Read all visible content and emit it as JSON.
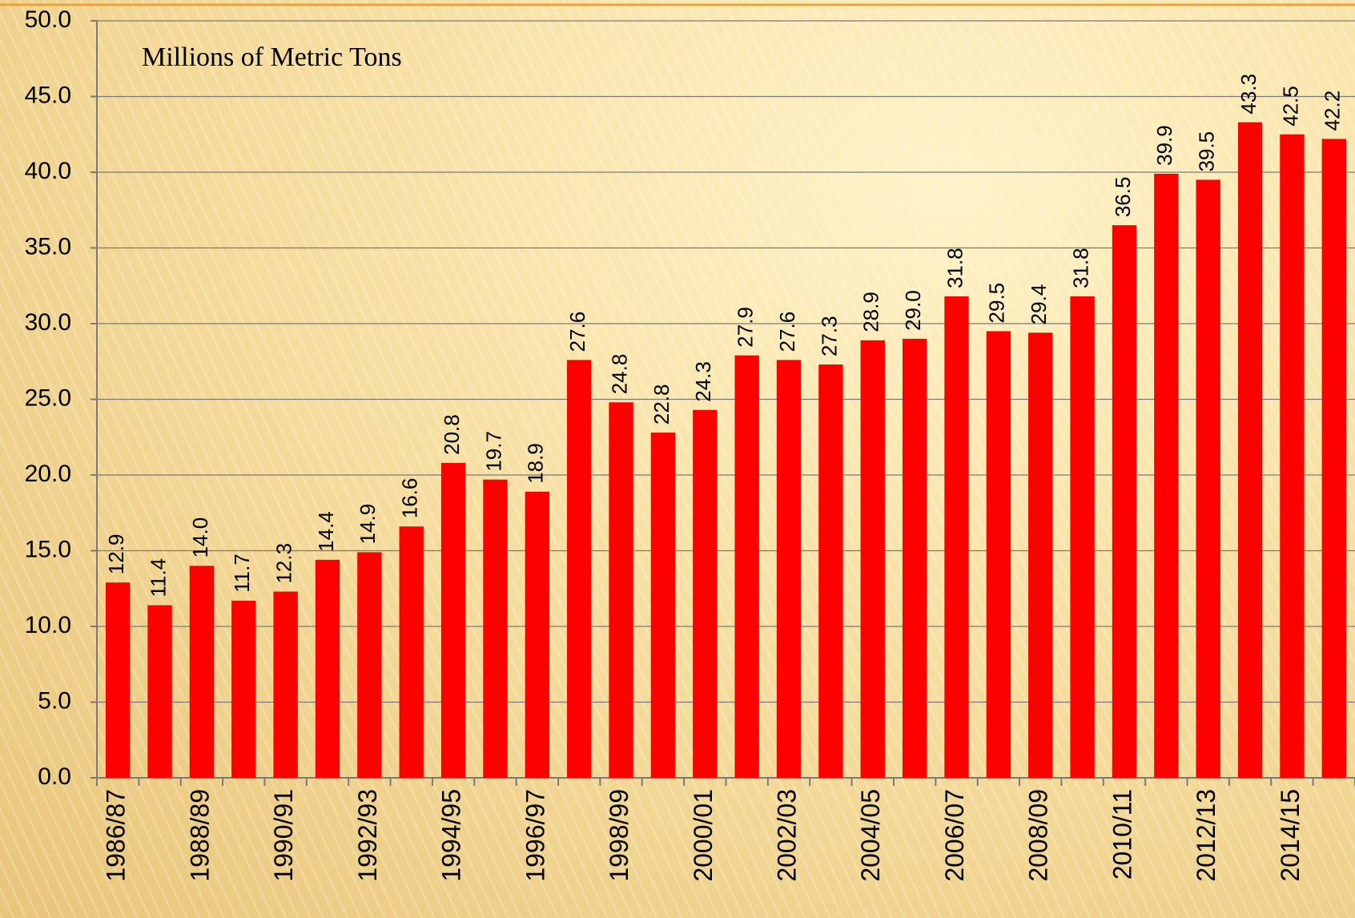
{
  "chart_data": {
    "type": "bar",
    "subtitle": "Millions of Metric Tons",
    "categories": [
      "1986/87",
      null,
      "1988/89",
      null,
      "1990/91",
      null,
      "1992/93",
      null,
      "1994/95",
      null,
      "1996/97",
      null,
      "1998/99",
      null,
      "2000/01",
      null,
      "2002/03",
      null,
      "2004/05",
      null,
      "2006/07",
      null,
      "2008/09",
      null,
      "2010/11",
      null,
      "2012/13",
      null,
      "2014/15",
      null
    ],
    "values": [
      12.9,
      11.4,
      14.0,
      11.7,
      12.3,
      14.4,
      14.9,
      16.6,
      20.8,
      19.7,
      18.9,
      27.6,
      24.8,
      22.8,
      24.3,
      27.9,
      27.6,
      27.3,
      28.9,
      29.0,
      31.8,
      29.5,
      29.4,
      31.8,
      36.5,
      39.9,
      39.5,
      43.3,
      42.5,
      42.2
    ],
    "value_labels": [
      "12.9",
      "11.4",
      "14.0",
      "11.7",
      "12.3",
      "14.4",
      "14.9",
      "16.6",
      "20.8",
      "19.7",
      "18.9",
      "27.6",
      "24.8",
      "22.8",
      "24.3",
      "27.9",
      "27.6",
      "27.3",
      "28.9",
      "29.0",
      "31.8",
      "29.5",
      "29.4",
      "31.8",
      "36.5",
      "39.9",
      "39.5",
      "43.3",
      "42.5",
      "42.2"
    ],
    "color": "#ff0000",
    "ylim": [
      0,
      50
    ],
    "yticks": [
      {
        "value": 0,
        "label": "0.0"
      },
      {
        "value": 5,
        "label": "5.0"
      },
      {
        "value": 10,
        "label": "10.0"
      },
      {
        "value": 15,
        "label": "15.0"
      },
      {
        "value": 20,
        "label": "20.0"
      },
      {
        "value": 25,
        "label": "25.0"
      },
      {
        "value": 30,
        "label": "30.0"
      },
      {
        "value": 35,
        "label": "35.0"
      },
      {
        "value": 40,
        "label": "40.0"
      },
      {
        "value": 45,
        "label": "45.0"
      },
      {
        "value": 50,
        "label": "50.0"
      }
    ],
    "grid": true
  }
}
